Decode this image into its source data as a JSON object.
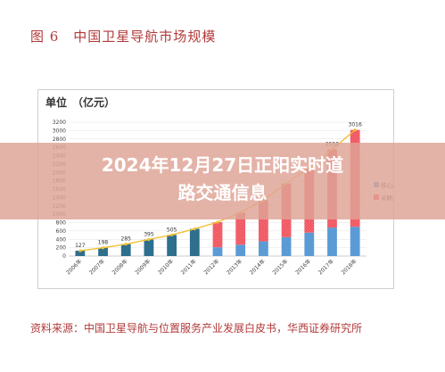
{
  "figure": {
    "caption": "图 6　中国卫星导航市场规模",
    "source": "资料来源：中国卫星导航与位置服务产业发展白皮书，华西证券研究所"
  },
  "overlay": {
    "line1": "2024年12月27日正阳实时道",
    "line2": "路交通信息"
  },
  "chart_data": {
    "type": "bar",
    "unit_label": "单位　（亿元）",
    "categories": [
      "2006年",
      "2007年",
      "2008年",
      "2009年",
      "2010年",
      "2011年",
      "2012年",
      "2013年",
      "2014年",
      "2015年",
      "2016年",
      "2017年",
      "2018年"
    ],
    "totals": [
      127,
      198,
      285,
      395,
      505,
      650,
      810,
      1040,
      1335,
      1735,
      2118,
      2550,
      3016
    ],
    "total_labels": [
      "127",
      "198",
      "285",
      "395",
      "505",
      "",
      "",
      "",
      "",
      "",
      "",
      "2550",
      "3016"
    ],
    "series": [
      {
        "name": "核心产值",
        "values": [
          null,
          null,
          null,
          null,
          null,
          null,
          210,
          270,
          350,
          450,
          560,
          680,
          700
        ],
        "color": "#5b9bd5"
      },
      {
        "name": "关联产值",
        "values": [
          null,
          null,
          null,
          null,
          null,
          null,
          600,
          770,
          985,
          1285,
          1558,
          1870,
          2316
        ],
        "color": "#ef4f5a"
      }
    ],
    "early_color": "#2e6f8e",
    "ylim": [
      0,
      3200
    ],
    "yticks": [
      0,
      200,
      400,
      600,
      800,
      1000,
      1200,
      1400,
      1600,
      1800,
      2000,
      2200,
      2400,
      2600,
      2800,
      3000,
      3200
    ],
    "trend_line_color": "#f2c037",
    "legend_position": "right"
  }
}
